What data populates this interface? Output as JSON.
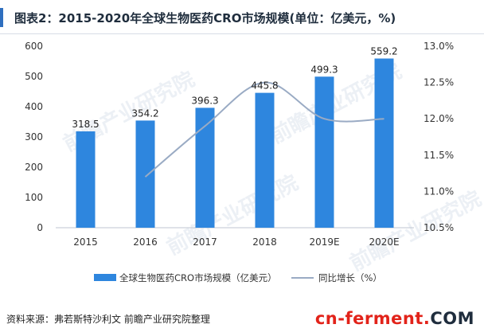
{
  "title": "图表2：2015-2020年全球生物医药CRO市场规模(单位：亿美元，%)",
  "source": "资料来源：弗若斯特沙利文 前瞻产业研究院整理",
  "brand": {
    "cn": "cn",
    "dash": "-",
    "ferment": "ferment",
    "dot": ".",
    "com": "COM"
  },
  "watermark": "前瞻产业研究院",
  "chart_data": {
    "type": "bar",
    "categories": [
      "2015",
      "2016",
      "2017",
      "2018",
      "2019E",
      "2020E"
    ],
    "series": [
      {
        "name": "全球生物医药CRO市场规模（亿美元）",
        "type": "bar",
        "axis": "left",
        "values": [
          318.5,
          354.2,
          396.3,
          445.8,
          499.3,
          559.2
        ],
        "labels": [
          "318.5",
          "354.2",
          "396.3",
          "445.8",
          "499.3",
          "559.2"
        ],
        "color": "#2e86de"
      },
      {
        "name": "同比增长（%）",
        "type": "line",
        "axis": "right",
        "values": [
          null,
          11.2,
          11.9,
          12.5,
          12.0,
          12.0
        ],
        "color": "#9aabc4"
      }
    ],
    "y_left": {
      "ylim": [
        0,
        600
      ],
      "ticks": [
        "0",
        "100",
        "200",
        "300",
        "400",
        "500",
        "600"
      ]
    },
    "y_right": {
      "ylim": [
        10.5,
        13.0
      ],
      "ticks": [
        "10.5%",
        "11.0%",
        "11.5%",
        "12.0%",
        "12.5%",
        "13.0%"
      ]
    },
    "grid": false,
    "legend": "bottom"
  }
}
